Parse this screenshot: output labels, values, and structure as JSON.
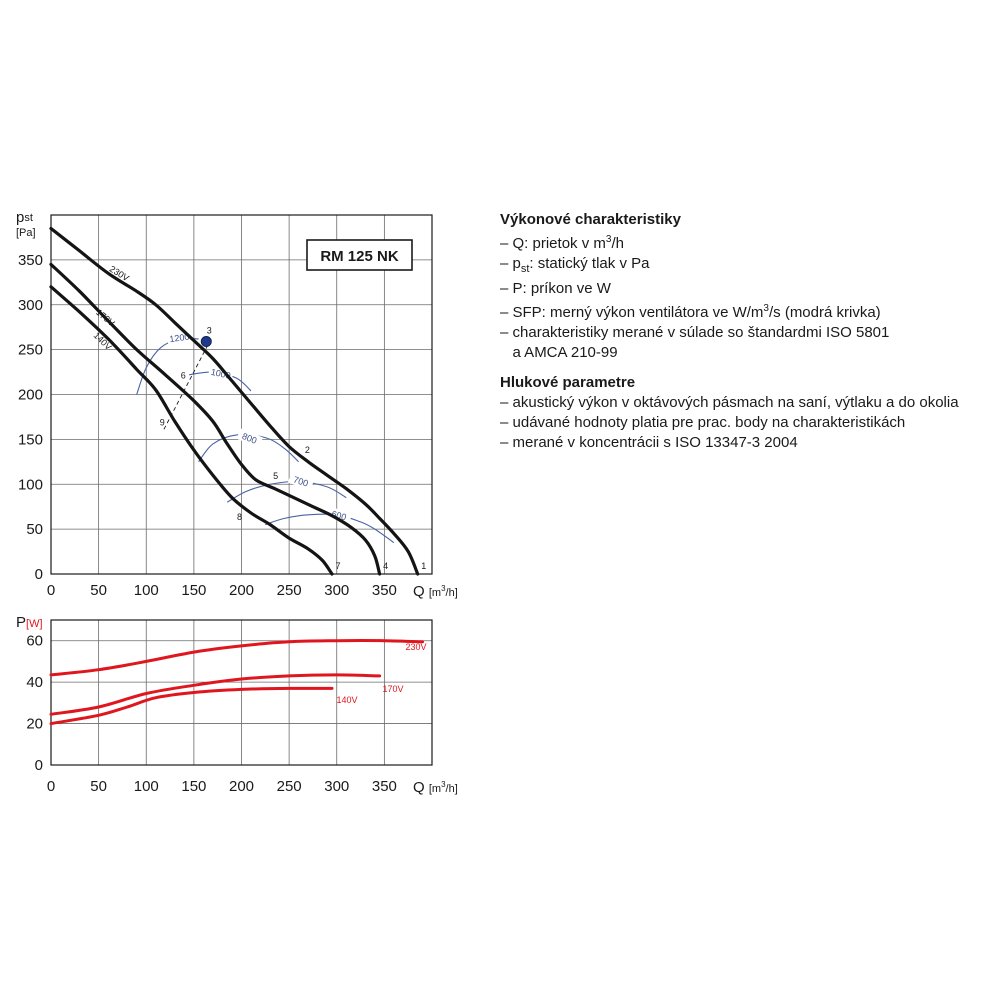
{
  "chart_data": [
    {
      "type": "line",
      "title": "RM 125 NK",
      "ylabel_main": "p",
      "ylabel_sub": "st",
      "ylabel_unit": "[Pa]",
      "xlabel": "Q",
      "xunit_pre": "[m",
      "xunit_sup": "3",
      "xunit_post": "/h]",
      "xlim": [
        0,
        400
      ],
      "ylim": [
        0,
        400
      ],
      "xticks": [
        0,
        50,
        100,
        150,
        200,
        250,
        300,
        350
      ],
      "yticks": [
        0,
        50,
        100,
        150,
        200,
        250,
        300,
        350
      ],
      "grid": true,
      "series": [
        {
          "name": "230V",
          "points": [
            [
              0,
              385
            ],
            [
              30,
              360
            ],
            [
              60,
              335
            ],
            [
              90,
              315
            ],
            [
              110,
              300
            ],
            [
              130,
              280
            ],
            [
              150,
              260
            ],
            [
              170,
              240
            ],
            [
              190,
              215
            ],
            [
              210,
              190
            ],
            [
              230,
              165
            ],
            [
              250,
              142
            ],
            [
              270,
              125
            ],
            [
              290,
              110
            ],
            [
              310,
              95
            ],
            [
              330,
              78
            ],
            [
              345,
              62
            ],
            [
              360,
              45
            ],
            [
              375,
              25
            ],
            [
              385,
              0
            ]
          ]
        },
        {
          "name": "170V",
          "points": [
            [
              0,
              345
            ],
            [
              30,
              315
            ],
            [
              60,
              282
            ],
            [
              90,
              250
            ],
            [
              120,
              222
            ],
            [
              150,
              193
            ],
            [
              170,
              170
            ],
            [
              185,
              145
            ],
            [
              200,
              122
            ],
            [
              215,
              105
            ],
            [
              235,
              95
            ],
            [
              255,
              85
            ],
            [
              275,
              75
            ],
            [
              295,
              65
            ],
            [
              315,
              52
            ],
            [
              330,
              38
            ],
            [
              340,
              20
            ],
            [
              345,
              0
            ]
          ]
        },
        {
          "name": "140V",
          "points": [
            [
              0,
              320
            ],
            [
              30,
              292
            ],
            [
              60,
              262
            ],
            [
              90,
              228
            ],
            [
              110,
              205
            ],
            [
              130,
              170
            ],
            [
              150,
              138
            ],
            [
              170,
              110
            ],
            [
              190,
              85
            ],
            [
              210,
              68
            ],
            [
              230,
              55
            ],
            [
              250,
              40
            ],
            [
              270,
              28
            ],
            [
              285,
              15
            ],
            [
              295,
              0
            ]
          ]
        }
      ],
      "curve_labels": [
        "230V",
        "170V",
        "140V"
      ],
      "sfp_curves": [
        {
          "label": "1200",
          "points": [
            [
              90,
              200
            ],
            [
              100,
              230
            ],
            [
              115,
              252
            ],
            [
              135,
              262
            ],
            [
              155,
              262
            ]
          ]
        },
        {
          "label": "1000",
          "points": [
            [
              145,
              222
            ],
            [
              170,
              225
            ],
            [
              195,
              218
            ],
            [
              210,
              204
            ]
          ]
        },
        {
          "label": "800",
          "points": [
            [
              155,
              125
            ],
            [
              170,
              145
            ],
            [
              195,
              155
            ],
            [
              225,
              152
            ],
            [
              245,
              140
            ],
            [
              260,
              125
            ]
          ]
        },
        {
          "label": "700",
          "points": [
            [
              185,
              80
            ],
            [
              205,
              92
            ],
            [
              230,
              100
            ],
            [
              260,
              103
            ],
            [
              290,
              97
            ],
            [
              310,
              85
            ]
          ]
        },
        {
          "label": "600",
          "points": [
            [
              225,
              55
            ],
            [
              245,
              62
            ],
            [
              270,
              66
            ],
            [
              300,
              66
            ],
            [
              325,
              58
            ],
            [
              340,
              50
            ],
            [
              360,
              35
            ]
          ]
        }
      ],
      "points": [
        {
          "label": "1",
          "q": 385,
          "p": 0
        },
        {
          "label": "2",
          "q": 265,
          "p": 128
        },
        {
          "label": "3",
          "q": 163,
          "p": 259,
          "marked": true
        },
        {
          "label": "4",
          "q": 345,
          "p": 0
        },
        {
          "label": "5",
          "q": 238,
          "p": 98
        },
        {
          "label": "6",
          "q": 143,
          "p": 210
        },
        {
          "label": "7",
          "q": 295,
          "p": 0
        },
        {
          "label": "8",
          "q": 200,
          "p": 76
        },
        {
          "label": "9",
          "q": 120,
          "p": 170
        }
      ]
    },
    {
      "type": "line",
      "ylabel": "P",
      "ylabel_unit": "[W]",
      "xlabel": "Q",
      "xunit_pre": "[m",
      "xunit_sup": "3",
      "xunit_post": "/h]",
      "xlim": [
        0,
        400
      ],
      "ylim": [
        0,
        70
      ],
      "xticks": [
        0,
        50,
        100,
        150,
        200,
        250,
        300,
        350
      ],
      "yticks": [
        0,
        20,
        40,
        60
      ],
      "grid": true,
      "color": "#e0161e",
      "series": [
        {
          "name": "230V",
          "points": [
            [
              0,
              43.5
            ],
            [
              50,
              46
            ],
            [
              100,
              50
            ],
            [
              150,
              54.5
            ],
            [
              200,
              57.5
            ],
            [
              250,
              59.5
            ],
            [
              300,
              60
            ],
            [
              350,
              60
            ],
            [
              390,
              59.5
            ]
          ]
        },
        {
          "name": "170V",
          "points": [
            [
              0,
              24.5
            ],
            [
              50,
              28
            ],
            [
              100,
              34.5
            ],
            [
              150,
              38.5
            ],
            [
              200,
              41.5
            ],
            [
              250,
              43
            ],
            [
              300,
              43.5
            ],
            [
              345,
              43
            ]
          ]
        },
        {
          "name": "140V",
          "points": [
            [
              0,
              20
            ],
            [
              50,
              24
            ],
            [
              80,
              28
            ],
            [
              110,
              32.5
            ],
            [
              150,
              35
            ],
            [
              200,
              36.5
            ],
            [
              250,
              37
            ],
            [
              295,
              37
            ]
          ]
        }
      ]
    }
  ],
  "legend": {
    "performance_title": "Výkonové charakteristiky",
    "performance_items": [
      {
        "pre": "– Q: prietok v m",
        "sup": "3",
        "post": "/h"
      },
      {
        "pre": "– p",
        "sub": "st",
        "post": ": statický tlak v Pa"
      },
      {
        "pre": "– P: príkon ve W"
      },
      {
        "pre": "– SFP: merný výkon ventilátora ve W/m",
        "sup": "3",
        "post": "/s (modrá krivka)"
      },
      {
        "pre": "– charakteristiky merané v súlade so štandardmi ISO 5801"
      },
      {
        "pre": "   a AMCA 210-99"
      }
    ],
    "noise_title": "Hlukové parametre",
    "noise_items": [
      {
        "pre": "– akustický výkon v oktávových pásmach na saní, výtlaku a do okolia"
      },
      {
        "pre": "– udávané hodnoty platia pre prac. body na charakteristikách"
      },
      {
        "pre": "– merané v koncentrácii s ISO 13347-3 2004"
      }
    ]
  }
}
